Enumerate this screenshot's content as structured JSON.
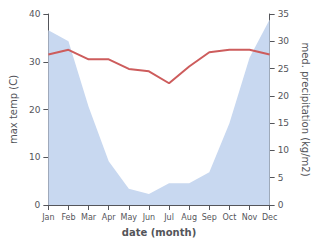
{
  "chart_data": {
    "type": "line",
    "categories": [
      "Jan",
      "Feb",
      "Mar",
      "Apr",
      "May",
      "Jun",
      "Jul",
      "Aug",
      "Sep",
      "Oct",
      "Nov",
      "Dec"
    ],
    "series": [
      {
        "type": "area",
        "color": "#c8d8f0",
        "axis": "y2",
        "values": [
          32,
          30,
          18,
          8,
          3,
          2,
          4,
          4,
          6,
          15,
          27,
          34
        ]
      },
      {
        "type": "line",
        "color": "#cd5c5c",
        "values": [
          31.5,
          32.5,
          30.5,
          30.5,
          28.5,
          28.0,
          25.5,
          29.0,
          32.0,
          32.5,
          32.5,
          31.5
        ]
      }
    ],
    "xlabel": "date (month)",
    "ylabel": "max temp (C)",
    "y2label": "med. precipitation (kg/m2)",
    "ylim": [
      0,
      40
    ],
    "yticks": [
      0,
      10,
      20,
      30,
      40
    ],
    "y2lim": [
      0,
      35
    ],
    "y2ticks": [
      0,
      5,
      10,
      15,
      20,
      25,
      30,
      35
    ],
    "grid": false
  }
}
